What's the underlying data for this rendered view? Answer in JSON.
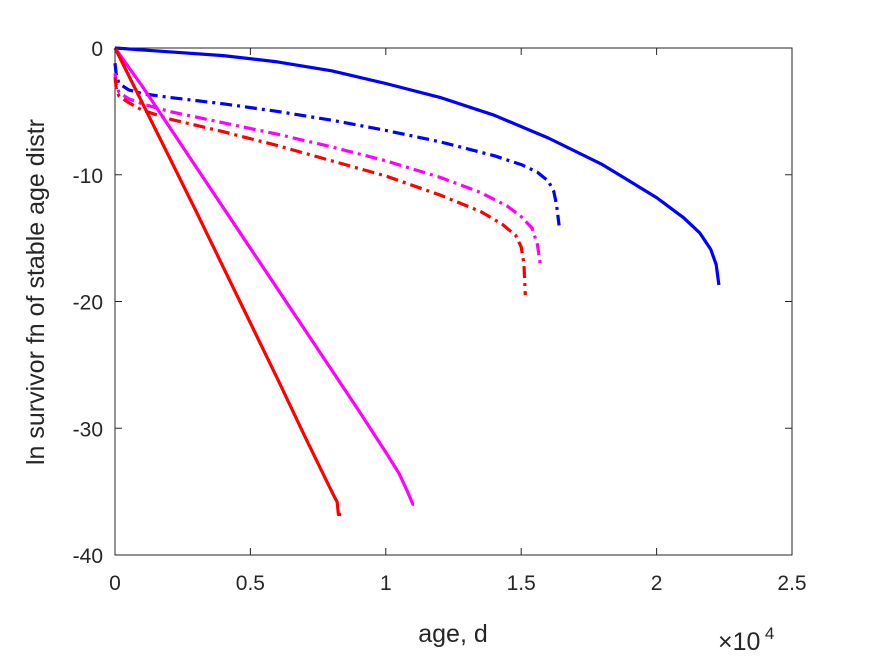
{
  "chart_data": {
    "type": "line",
    "title": "",
    "xlabel": "age, d",
    "ylabel": "ln survivor fn of stable age distr",
    "x_multiplier_label": {
      "base": "×10",
      "exponent": "4"
    },
    "x_scale_factor": 10000,
    "xlim": [
      0,
      25000
    ],
    "ylim": [
      -40,
      0
    ],
    "x_ticks": [
      0,
      5000,
      10000,
      15000,
      20000,
      25000
    ],
    "x_tick_labels": [
      "0",
      "0.5",
      "1",
      "1.5",
      "2",
      "2.5"
    ],
    "y_ticks": [
      -40,
      -30,
      -20,
      -10,
      0
    ],
    "y_tick_labels": [
      "-40",
      "-30",
      "-20",
      "-10",
      "0"
    ],
    "grid": false,
    "legend": null,
    "series": [
      {
        "color": "#0000ff",
        "style": "solid",
        "x": [
          0,
          2000,
          4000,
          6000,
          8000,
          10000,
          12000,
          14000,
          16000,
          18000,
          20000,
          21000,
          21600,
          22000,
          22200,
          22300
        ],
        "y": [
          0,
          -0.3,
          -0.6,
          -1.1,
          -1.8,
          -2.8,
          -3.9,
          -5.3,
          -7.1,
          -9.2,
          -11.8,
          -13.4,
          -14.6,
          -15.9,
          -17.1,
          -18.7
        ]
      },
      {
        "color": "#0000ff",
        "style": "dashdot",
        "x": [
          0,
          50,
          150,
          500,
          1000,
          2000,
          4000,
          6000,
          8000,
          10000,
          12000,
          14000,
          15000,
          15600,
          16000,
          16200,
          16300,
          16400
        ],
        "y": [
          -1.2,
          -2.2,
          -2.8,
          -3.3,
          -3.6,
          -3.9,
          -4.4,
          -5.0,
          -5.7,
          -6.5,
          -7.4,
          -8.5,
          -9.2,
          -9.8,
          -10.5,
          -11.3,
          -12.3,
          -14.0
        ]
      },
      {
        "color": "#ff00ff",
        "style": "dashdot",
        "x": [
          0,
          50,
          150,
          500,
          1000,
          2000,
          4000,
          6000,
          8000,
          10000,
          12000,
          13500,
          14500,
          15000,
          15400,
          15600,
          15700
        ],
        "y": [
          -2.0,
          -3.0,
          -3.5,
          -4.0,
          -4.4,
          -5.0,
          -5.9,
          -6.8,
          -7.8,
          -8.9,
          -10.2,
          -11.4,
          -12.5,
          -13.3,
          -14.2,
          -15.5,
          -17.0
        ]
      },
      {
        "color": "#ff0000",
        "style": "dashdot",
        "x": [
          0,
          50,
          150,
          500,
          1000,
          2000,
          4000,
          6000,
          8000,
          10000,
          12000,
          13500,
          14300,
          14800,
          15000,
          15100,
          15150
        ],
        "y": [
          -2.3,
          -3.3,
          -3.8,
          -4.3,
          -4.9,
          -5.6,
          -6.6,
          -7.7,
          -8.9,
          -10.1,
          -11.6,
          -12.9,
          -13.9,
          -14.8,
          -15.7,
          -17.0,
          -19.5
        ]
      },
      {
        "color": "#ff00ff",
        "style": "solid",
        "x": [
          0,
          1000,
          2000,
          3000,
          4000,
          5000,
          6000,
          7000,
          8000,
          9000,
          10000,
          10500,
          10800,
          10900,
          11000,
          11050
        ],
        "y": [
          0,
          -3.0,
          -6.2,
          -9.4,
          -12.6,
          -15.8,
          -19.0,
          -22.2,
          -25.4,
          -28.6,
          -31.9,
          -33.6,
          -35.0,
          -35.5,
          -36.0,
          -36.0
        ]
      },
      {
        "color": "#ff0000",
        "style": "solid",
        "x": [
          0,
          1000,
          2000,
          3000,
          4000,
          5000,
          6000,
          7000,
          7800,
          8100,
          8200,
          8250,
          8350
        ],
        "y": [
          0,
          -4.3,
          -8.6,
          -12.9,
          -17.3,
          -21.7,
          -26.1,
          -30.6,
          -34.1,
          -35.4,
          -35.8,
          -36.8,
          -36.8
        ]
      }
    ]
  }
}
